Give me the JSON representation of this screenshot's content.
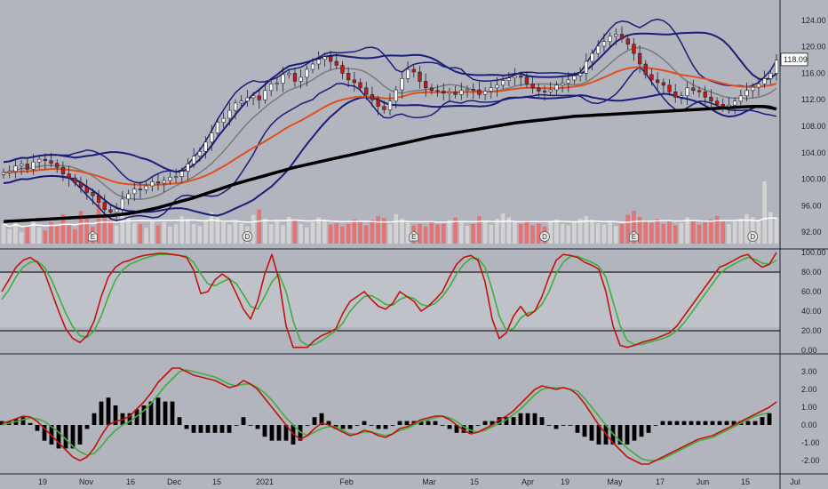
{
  "colors": {
    "background": "#b2b5be",
    "pane_bg_band": "#c2c5cc",
    "bollinger": "#1b1d7a",
    "sma_fast": "#7a7a7a",
    "ema_mid": "#e0501f",
    "sma_long": "#000000",
    "candle_up": "#ffffff",
    "candle_down": "#c21818",
    "volume_up": "#d3d3d3",
    "volume_down": "#e57373",
    "volume_avg": "#ffffff",
    "stoch_k": "#c0140f",
    "stoch_d": "#3fae3f",
    "macd": "#c0140f",
    "signal": "#3fae3f",
    "histogram": "#000000"
  },
  "last_price": "118.09",
  "x_axis_labels": [
    "19",
    "Nov",
    "16",
    "Dec",
    "15",
    "2021",
    "Feb",
    "Mar",
    "15",
    "Apr",
    "19",
    "May",
    "17",
    "Jun",
    "15",
    "Jul"
  ],
  "event_markers": [
    "E",
    "D",
    "E",
    "D",
    "E",
    "D"
  ],
  "chart_data": [
    {
      "type": "candlestick",
      "pane": "price",
      "ylim": [
        90,
        126
      ],
      "y_ticks": [
        "92.00",
        "96.00",
        "100.00",
        "104.00",
        "108.00",
        "112.00",
        "116.00",
        "120.00",
        "124.00"
      ],
      "x_labels": [
        "19",
        "Nov",
        "16",
        "Dec",
        "15",
        "2021",
        "Feb",
        "Mar",
        "15",
        "Apr",
        "19",
        "May",
        "17",
        "Jun",
        "15",
        "Jul"
      ],
      "close": [
        101.0,
        101.2,
        102.0,
        102.3,
        101.5,
        102.6,
        103.0,
        102.8,
        102.4,
        101.8,
        100.8,
        100.2,
        99.5,
        98.8,
        98.0,
        97.5,
        96.5,
        95.4,
        95.0,
        95.5,
        97.0,
        97.8,
        98.5,
        98.4,
        99.0,
        99.6,
        99.4,
        99.8,
        100.3,
        100.4,
        101.2,
        102.3,
        103.5,
        104.2,
        105.6,
        107.0,
        108.6,
        109.2,
        110.4,
        111.5,
        111.8,
        112.3,
        112.6,
        112.0,
        113.4,
        114.4,
        114.5,
        115.8,
        116.0,
        114.8,
        115.4,
        116.6,
        117.4,
        118.1,
        118.5,
        117.8,
        117.2,
        116.0,
        115.0,
        114.6,
        113.8,
        112.8,
        112.0,
        111.0,
        110.5,
        111.8,
        113.5,
        115.2,
        116.6,
        116.2,
        114.8,
        113.8,
        113.4,
        113.3,
        113.0,
        113.2,
        112.8,
        113.4,
        113.6,
        113.5,
        112.8,
        113.3,
        113.8,
        114.2,
        114.9,
        115.3,
        115.6,
        115.4,
        114.4,
        113.8,
        113.3,
        113.2,
        113.5,
        114.2,
        114.5,
        115.0,
        115.6,
        116.0,
        117.8,
        119.0,
        120.1,
        120.8,
        121.6,
        121.9,
        121.2,
        120.4,
        119.0,
        117.4,
        115.8,
        115.0,
        114.6,
        114.2,
        113.2,
        112.4,
        112.6,
        113.8,
        113.4,
        113.2,
        112.4,
        111.8,
        111.3,
        111.0,
        111.2,
        111.8,
        112.6,
        113.4,
        113.9,
        114.4,
        115.2,
        116.0,
        118.0
      ],
      "ma_long": [
        93.6,
        93.65,
        93.7,
        93.75,
        93.8,
        93.85,
        93.9,
        93.95,
        94.0,
        94.05,
        94.1,
        94.15,
        94.2,
        94.25,
        94.3,
        94.35,
        94.4,
        94.45,
        94.5,
        94.6,
        94.7,
        94.8,
        94.95,
        95.1,
        95.3,
        95.5,
        95.7,
        95.95,
        96.2,
        96.45,
        96.7,
        96.95,
        97.2,
        97.5,
        97.8,
        98.1,
        98.4,
        98.7,
        99.0,
        99.3,
        99.55,
        99.8,
        100.05,
        100.3,
        100.55,
        100.8,
        101.05,
        101.3,
        101.55,
        101.8,
        102.0,
        102.2,
        102.4,
        102.6,
        102.8,
        103.0,
        103.2,
        103.4,
        103.6,
        103.8,
        104.0,
        104.2,
        104.4,
        104.6,
        104.8,
        105.0,
        105.2,
        105.4,
        105.6,
        105.8,
        106.0,
        106.2,
        106.4,
        106.55,
        106.7,
        106.85,
        107.0,
        107.15,
        107.3,
        107.45,
        107.6,
        107.75,
        107.9,
        108.05,
        108.2,
        108.35,
        108.5,
        108.6,
        108.7,
        108.8,
        108.9,
        109.0,
        109.1,
        109.2,
        109.3,
        109.4,
        109.5,
        109.55,
        109.6,
        109.65,
        109.7,
        109.75,
        109.8,
        109.85,
        109.9,
        109.95,
        110.0,
        110.05,
        110.1,
        110.15,
        110.2,
        110.25,
        110.3,
        110.35,
        110.4,
        110.45,
        110.5,
        110.55,
        110.6,
        110.65,
        110.7,
        110.75,
        110.8,
        110.85,
        110.9,
        110.95,
        111.0,
        111.0,
        110.95,
        110.8,
        110.6
      ]
    },
    {
      "type": "bar",
      "pane": "volume",
      "values": [
        30,
        22,
        35,
        18,
        28,
        40,
        25,
        20,
        33,
        27,
        45,
        30,
        22,
        50,
        38,
        26,
        60,
        42,
        35,
        28,
        55,
        40,
        32,
        30,
        24,
        36,
        28,
        33,
        26,
        30,
        42,
        38,
        30,
        27,
        35,
        48,
        40,
        33,
        29,
        36,
        31,
        26,
        44,
        52,
        38,
        30,
        34,
        28,
        41,
        36,
        30,
        25,
        33,
        40,
        35,
        29,
        31,
        26,
        30,
        37,
        33,
        28,
        36,
        42,
        39,
        30,
        45,
        38,
        32,
        28,
        30,
        26,
        34,
        29,
        31,
        36,
        40,
        33,
        27,
        30,
        42,
        35,
        29,
        38,
        46,
        40,
        33,
        30,
        35,
        28,
        31,
        26,
        33,
        37,
        30,
        28,
        34,
        38,
        42,
        36,
        31,
        29,
        33,
        27,
        30,
        44,
        50,
        41,
        35,
        32,
        38,
        30,
        34,
        28,
        31,
        40,
        36,
        29,
        33,
        37,
        42,
        35,
        30,
        34,
        38,
        45,
        40,
        36,
        95,
        48,
        40
      ]
    },
    {
      "type": "line",
      "pane": "stochastic",
      "ylim": [
        0,
        100
      ],
      "y_ticks": [
        "100.00",
        "80.00",
        "60.00",
        "40.00",
        "20.00",
        "0.00"
      ],
      "bands": [
        80,
        20
      ],
      "series": [
        {
          "values": [
            60,
            72,
            85,
            92,
            95,
            90,
            80,
            60,
            40,
            22,
            12,
            8,
            15,
            30,
            55,
            75,
            85,
            90,
            92,
            95,
            97,
            98,
            99,
            99,
            98,
            97,
            95,
            82,
            58,
            60,
            72,
            78,
            73,
            58,
            42,
            32,
            50,
            78,
            98,
            72,
            25,
            3,
            3,
            3,
            10,
            15,
            18,
            22,
            38,
            50,
            55,
            60,
            52,
            45,
            42,
            48,
            60,
            55,
            50,
            40,
            45,
            52,
            60,
            75,
            88,
            95,
            97,
            92,
            70,
            32,
            12,
            18,
            35,
            45,
            35,
            40,
            55,
            75,
            92,
            98,
            97,
            95,
            90,
            87,
            83,
            60,
            25,
            5,
            3,
            5,
            8,
            10,
            12,
            15,
            18,
            25,
            35,
            45,
            55,
            65,
            75,
            85,
            88,
            92,
            96,
            98,
            90,
            85,
            88,
            100
          ]
        },
        {
          "values": [
            52,
            62,
            75,
            85,
            90,
            91,
            85,
            72,
            55,
            38,
            24,
            15,
            13,
            20,
            35,
            55,
            72,
            82,
            88,
            91,
            94,
            96,
            98,
            98,
            98,
            97,
            96,
            90,
            78,
            68,
            66,
            70,
            73,
            68,
            57,
            45,
            42,
            55,
            70,
            78,
            60,
            30,
            10,
            5,
            6,
            10,
            15,
            20,
            28,
            40,
            48,
            55,
            56,
            52,
            47,
            46,
            52,
            55,
            53,
            47,
            45,
            48,
            55,
            65,
            78,
            88,
            94,
            94,
            85,
            62,
            35,
            20,
            22,
            33,
            38,
            40,
            47,
            60,
            78,
            90,
            96,
            96,
            93,
            90,
            86,
            75,
            50,
            25,
            10,
            6,
            6,
            8,
            10,
            12,
            15,
            20,
            28,
            38,
            48,
            58,
            68,
            78,
            84,
            88,
            92,
            95,
            93,
            89,
            88,
            92
          ]
        }
      ]
    },
    {
      "type": "line",
      "pane": "macd",
      "ylim": [
        -2.6,
        3.8
      ],
      "y_ticks": [
        "3.00",
        "2.00",
        "1.00",
        "0.00",
        "-1.00",
        "-2.00"
      ],
      "series": [
        {
          "values": [
            0.1,
            0.2,
            0.35,
            0.5,
            0.45,
            0.2,
            -0.2,
            -0.6,
            -1.0,
            -1.4,
            -1.8,
            -2.0,
            -1.8,
            -1.3,
            -0.6,
            0.0,
            0.2,
            0.3,
            0.5,
            0.9,
            1.3,
            1.8,
            2.4,
            2.8,
            3.2,
            3.2,
            3.0,
            2.8,
            2.7,
            2.6,
            2.5,
            2.3,
            2.1,
            2.2,
            2.5,
            2.3,
            2.0,
            1.5,
            1.0,
            0.5,
            0.0,
            -0.5,
            -0.8,
            -0.6,
            -0.2,
            0.1,
            0.0,
            -0.2,
            -0.4,
            -0.6,
            -0.5,
            -0.3,
            -0.4,
            -0.6,
            -0.7,
            -0.5,
            -0.2,
            -0.1,
            0.1,
            0.3,
            0.4,
            0.5,
            0.5,
            0.3,
            0.0,
            -0.3,
            -0.5,
            -0.4,
            -0.2,
            0.0,
            0.3,
            0.5,
            0.8,
            1.2,
            1.6,
            2.0,
            2.2,
            2.1,
            2.0,
            2.1,
            2.0,
            1.7,
            1.2,
            0.6,
            0.0,
            -0.5,
            -1.0,
            -1.4,
            -1.8,
            -2.0,
            -2.2,
            -2.2,
            -2.0,
            -1.8,
            -1.6,
            -1.4,
            -1.2,
            -1.0,
            -0.8,
            -0.7,
            -0.6,
            -0.4,
            -0.2,
            0.0,
            0.2,
            0.4,
            0.6,
            0.8,
            1.0,
            1.3
          ]
        },
        {
          "values": [
            0.0,
            0.1,
            0.2,
            0.3,
            0.4,
            0.35,
            0.2,
            -0.1,
            -0.4,
            -0.8,
            -1.2,
            -1.5,
            -1.7,
            -1.6,
            -1.2,
            -0.7,
            -0.3,
            0.0,
            0.2,
            0.5,
            0.8,
            1.2,
            1.7,
            2.2,
            2.6,
            3.0,
            3.1,
            3.0,
            2.9,
            2.8,
            2.7,
            2.5,
            2.3,
            2.2,
            2.3,
            2.3,
            2.1,
            1.8,
            1.4,
            0.9,
            0.4,
            0.0,
            -0.4,
            -0.6,
            -0.4,
            -0.2,
            -0.1,
            -0.1,
            -0.3,
            -0.5,
            -0.5,
            -0.4,
            -0.4,
            -0.5,
            -0.6,
            -0.5,
            -0.3,
            -0.2,
            0.0,
            0.2,
            0.3,
            0.4,
            0.5,
            0.4,
            0.2,
            -0.1,
            -0.3,
            -0.4,
            -0.3,
            -0.1,
            0.1,
            0.3,
            0.6,
            0.9,
            1.3,
            1.7,
            2.0,
            2.1,
            2.1,
            2.1,
            2.0,
            1.9,
            1.5,
            1.0,
            0.5,
            0.0,
            -0.5,
            -0.9,
            -1.3,
            -1.6,
            -1.9,
            -2.0,
            -2.0,
            -1.9,
            -1.7,
            -1.5,
            -1.3,
            -1.1,
            -0.9,
            -0.8,
            -0.7,
            -0.5,
            -0.3,
            -0.1,
            0.1,
            0.3,
            0.5,
            0.6,
            0.7
          ]
        }
      ]
    }
  ]
}
